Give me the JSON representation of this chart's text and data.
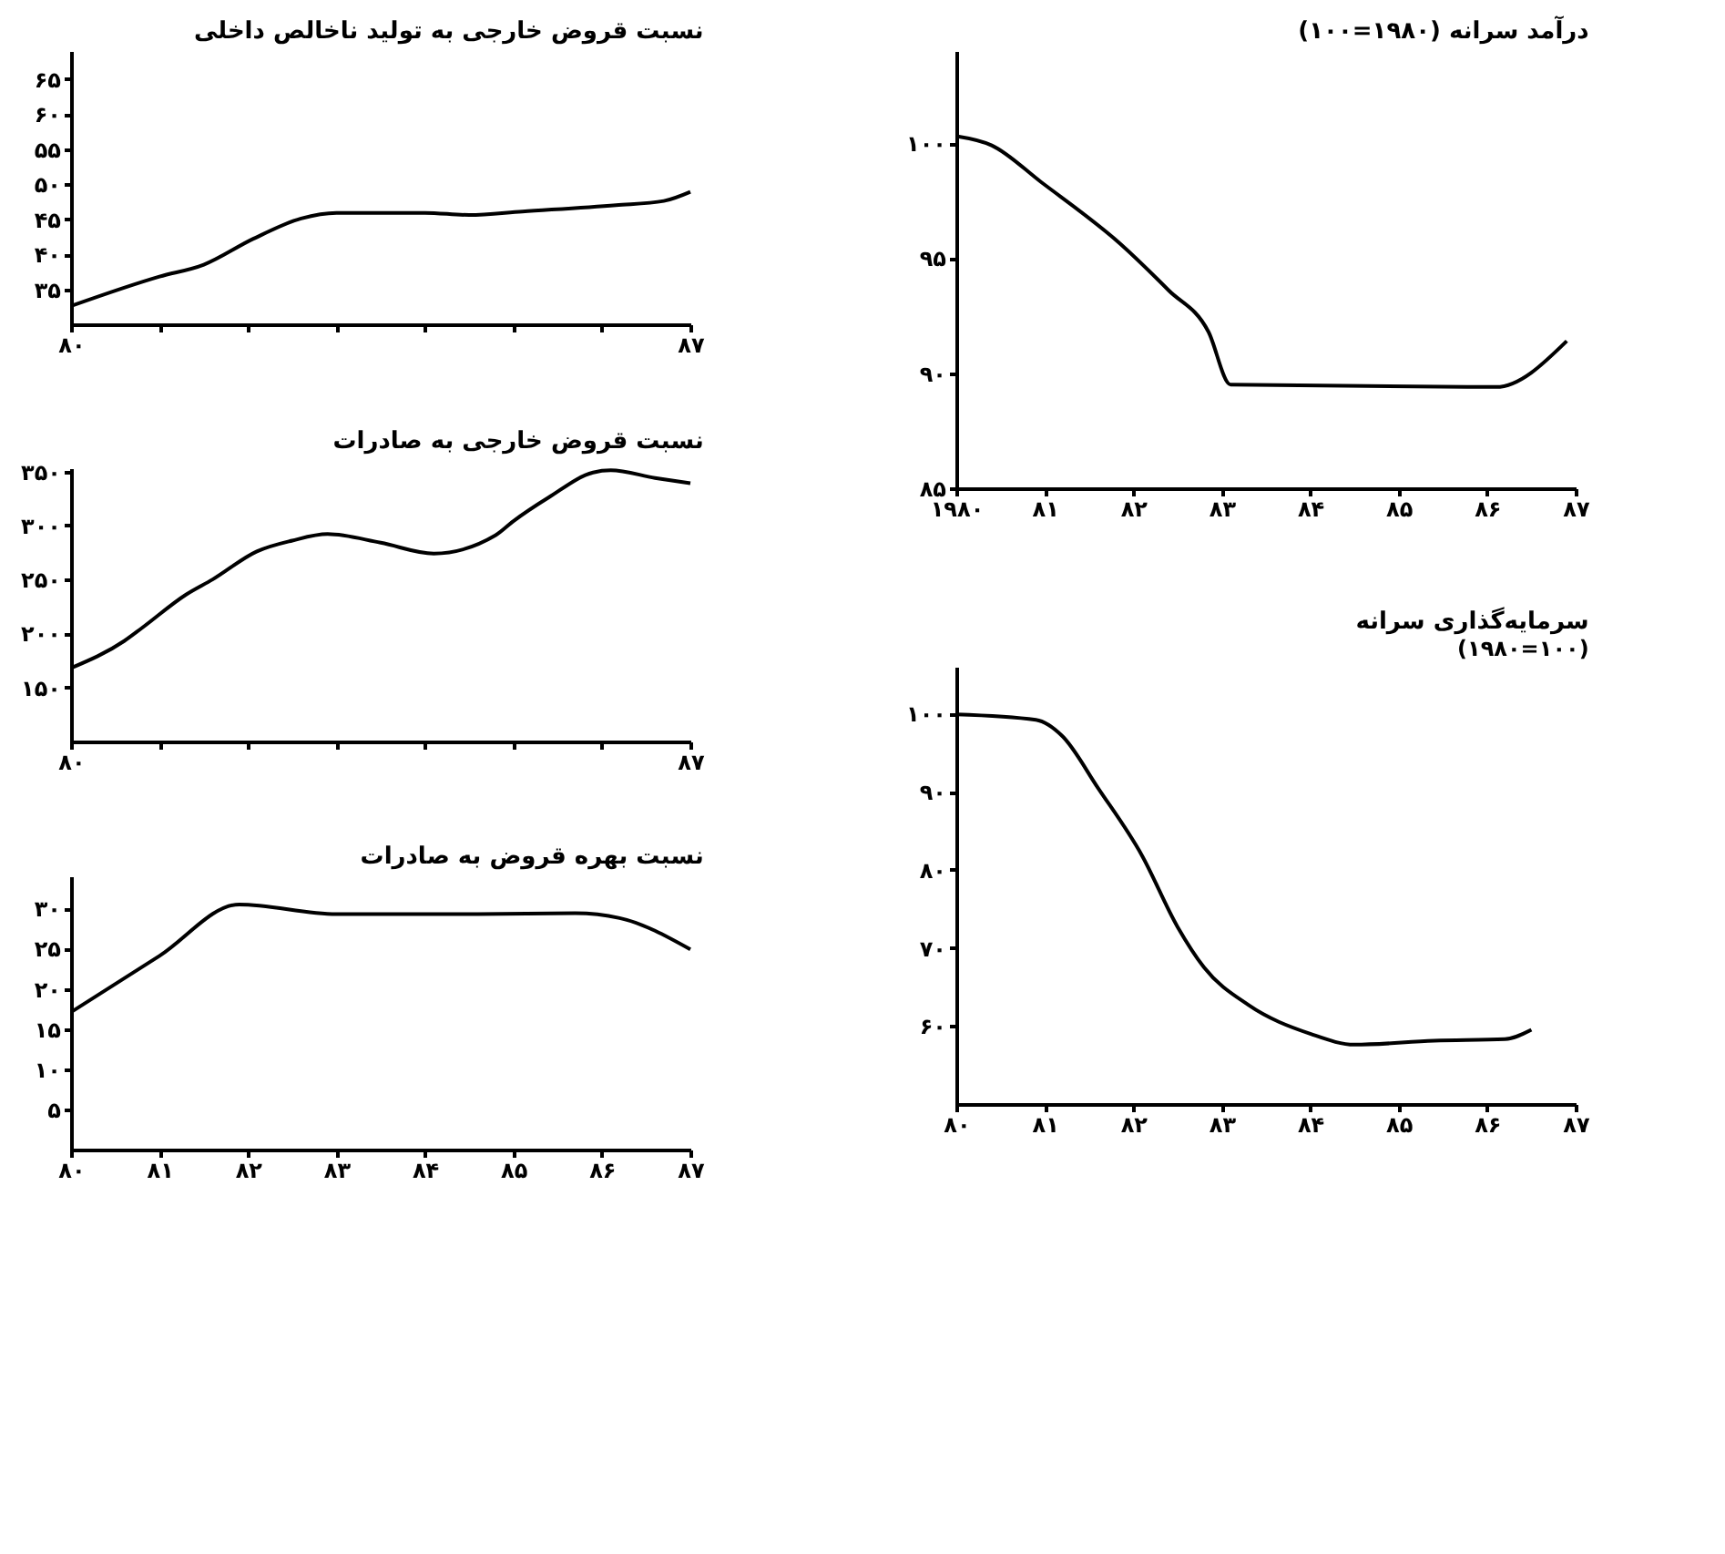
{
  "chart_data": [
    {
      "type": "line",
      "title": "نسبت قروض خارجی به تولید ناخالص داخلی",
      "xlim": [
        80,
        87
      ],
      "xticks": [
        {
          "value": 80,
          "label": "۸۰"
        },
        {
          "value": 81,
          "label": null
        },
        {
          "value": 82,
          "label": null
        },
        {
          "value": 83,
          "label": null
        },
        {
          "value": 84,
          "label": null
        },
        {
          "value": 85,
          "label": null
        },
        {
          "value": 86,
          "label": null
        },
        {
          "value": 87,
          "label": "۸۷"
        }
      ],
      "ylim": [
        30,
        69
      ],
      "yticks": [
        {
          "value": 35,
          "label": "۳۵"
        },
        {
          "value": 40,
          "label": "۴۰"
        },
        {
          "value": 45,
          "label": "۴۵"
        },
        {
          "value": 50,
          "label": "۵۰"
        },
        {
          "value": 55,
          "label": "۵۵"
        },
        {
          "value": 60,
          "label": "۶۰"
        },
        {
          "value": 65,
          "label": "۶۵"
        }
      ],
      "series": [
        {
          "color": "#000000",
          "x": [
            80,
            81,
            81.5,
            82.06,
            82.6,
            83,
            84,
            84.5,
            85.1,
            86.16,
            86.7,
            87
          ],
          "values": [
            32.6,
            36.8,
            38.5,
            42.2,
            45.1,
            45.9,
            45.9,
            45.6,
            46.1,
            47,
            47.6,
            48.9
          ]
        }
      ]
    },
    {
      "type": "line",
      "title": "نسبت قروض خارجی به صادرات",
      "xlim": [
        80,
        87
      ],
      "xticks": [
        {
          "value": 80,
          "label": "۸۰"
        },
        {
          "value": 81,
          "label": null
        },
        {
          "value": 82,
          "label": null
        },
        {
          "value": 83,
          "label": null
        },
        {
          "value": 84,
          "label": null
        },
        {
          "value": 85,
          "label": null
        },
        {
          "value": 86,
          "label": null
        },
        {
          "value": 87,
          "label": "۸۷"
        }
      ],
      "ylim": [
        100,
        353
      ],
      "yticks": [
        {
          "value": 150,
          "label": "۱۵۰"
        },
        {
          "value": 200,
          "label": "۲۰۰"
        },
        {
          "value": 250,
          "label": "۲۵۰"
        },
        {
          "value": 300,
          "label": "۳۰۰"
        },
        {
          "value": 350,
          "label": "۳۵۰"
        }
      ],
      "series": [
        {
          "color": "#000000",
          "x": [
            80,
            80.6,
            80.8,
            81.3,
            81.6,
            82.1,
            82.5,
            82.9,
            83.5,
            84.1,
            84.8,
            85,
            85.4,
            85.9,
            86.1,
            86.6,
            87
          ],
          "values": [
            168,
            193,
            205,
            236,
            250,
            276,
            286,
            292,
            284,
            274,
            291,
            304,
            326,
            349,
            351,
            344,
            339
          ]
        }
      ]
    },
    {
      "type": "line",
      "title": "نسبت بهره قروض به صادرات",
      "xlim": [
        80,
        87
      ],
      "xticks": [
        {
          "value": 80,
          "label": "۸۰"
        },
        {
          "value": 81,
          "label": "۸۱"
        },
        {
          "value": 82,
          "label": "۸۲"
        },
        {
          "value": 83,
          "label": "۸۳"
        },
        {
          "value": 84,
          "label": "۸۴"
        },
        {
          "value": 85,
          "label": "۸۵"
        },
        {
          "value": 86,
          "label": "۸۶"
        },
        {
          "value": 87,
          "label": "۸۷"
        }
      ],
      "ylim": [
        0,
        34
      ],
      "yticks": [
        {
          "value": 5,
          "label": "۵"
        },
        {
          "value": 10,
          "label": "۱۰"
        },
        {
          "value": 15,
          "label": "۱۵"
        },
        {
          "value": 20,
          "label": "۲۰"
        },
        {
          "value": 25,
          "label": "۲۵"
        },
        {
          "value": 30,
          "label": "۳۰"
        }
      ],
      "series": [
        {
          "color": "#000000",
          "x": [
            80,
            81,
            81.9,
            83,
            84.6,
            85.7,
            86.2,
            87
          ],
          "values": [
            17.1,
            24.1,
            30.5,
            29.3,
            29.3,
            29.4,
            28.8,
            24.9
          ]
        }
      ]
    },
    {
      "type": "line",
      "title": "درآمد سرانه (۱۹۸۰=۱۰۰)",
      "xlim": [
        1980,
        1987
      ],
      "xticks": [
        {
          "value": 1980,
          "label": "۱۹۸۰"
        },
        {
          "value": 1981,
          "label": "۸۱"
        },
        {
          "value": 1982,
          "label": "۸۲"
        },
        {
          "value": 1983,
          "label": "۸۳"
        },
        {
          "value": 1984,
          "label": "۸۴"
        },
        {
          "value": 1985,
          "label": "۸۵"
        },
        {
          "value": 1986,
          "label": "۸۶"
        },
        {
          "value": 1987,
          "label": "۸۷"
        }
      ],
      "ylim": [
        85,
        104
      ],
      "yticks": [
        {
          "value": 85,
          "label": "۸۵"
        },
        {
          "value": 90,
          "label": "۹۰"
        },
        {
          "value": 95,
          "label": "۹۵"
        },
        {
          "value": 100,
          "label": "۱۰۰"
        }
      ],
      "series": [
        {
          "color": "#000000",
          "x": [
            1980,
            1980.4,
            1980.96,
            1981.86,
            1982.4,
            1982.85,
            1983.1,
            1986.1,
            1986.9
          ],
          "values": [
            100.3,
            99.9,
            98.3,
            95.6,
            93.6,
            91.8,
            89.5,
            89.4,
            91.4
          ]
        }
      ]
    },
    {
      "type": "line",
      "title": "سرمایه‌گذاری سرانه",
      "subtitle": "(۱۹۸۰=۱۰۰)",
      "xlim": [
        80,
        87
      ],
      "xticks": [
        {
          "value": 80,
          "label": "۸۰"
        },
        {
          "value": 81,
          "label": "۸۱"
        },
        {
          "value": 82,
          "label": "۸۲"
        },
        {
          "value": 83,
          "label": "۸۳"
        },
        {
          "value": 84,
          "label": "۸۴"
        },
        {
          "value": 85,
          "label": "۸۵"
        },
        {
          "value": 86,
          "label": "۸۶"
        },
        {
          "value": 87,
          "label": "۸۷"
        }
      ],
      "ylim": [
        50,
        106
      ],
      "yticks": [
        {
          "value": 60,
          "label": "۶۰"
        },
        {
          "value": 70,
          "label": "۷۰"
        },
        {
          "value": 80,
          "label": "۸۰"
        },
        {
          "value": 90,
          "label": "۹۰"
        },
        {
          "value": 100,
          "label": "۱۰۰"
        }
      ],
      "series": [
        {
          "color": "#000000",
          "x": [
            80,
            80.9,
            81.2,
            81.6,
            82.1,
            82.5,
            82.8,
            83.3,
            84,
            84.5,
            85.4,
            86.2,
            86.5
          ],
          "values": [
            99.9,
            99.2,
            97.1,
            90.5,
            81.8,
            72.7,
            67.5,
            62.7,
            59,
            57.6,
            58.1,
            58.3,
            59.5
          ]
        }
      ]
    }
  ]
}
